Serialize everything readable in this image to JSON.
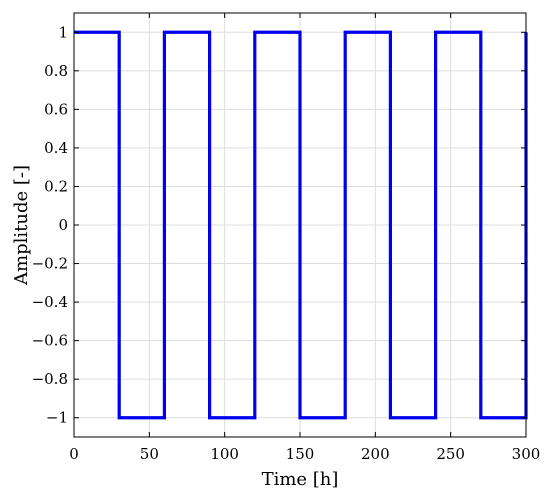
{
  "chart_data": {
    "type": "line",
    "title": "",
    "xlabel": "Time [h]",
    "ylabel": "Amplitude [-]",
    "xlim": [
      0,
      300
    ],
    "ylim": [
      -1.1,
      1.1
    ],
    "x_ticks": [
      0,
      50,
      100,
      150,
      200,
      250,
      300
    ],
    "x_tick_labels": [
      "0",
      "50",
      "100",
      "150",
      "200",
      "250",
      "300"
    ],
    "y_ticks": [
      1,
      0.8,
      0.6,
      0.4,
      0.2,
      0,
      -0.2,
      -0.4,
      -0.6,
      -0.8,
      -1
    ],
    "y_tick_labels": [
      "1",
      "0.8",
      "0.6",
      "0.4",
      "0.2",
      "0",
      "−0.2",
      "−0.4",
      "−0.6",
      "−0.8",
      "−1"
    ],
    "grid": true,
    "series": [
      {
        "color": "#0000ee",
        "step": true,
        "x": [
          0,
          30,
          30,
          60,
          60,
          90,
          90,
          120,
          120,
          150,
          150,
          180,
          180,
          210,
          210,
          240,
          240,
          270,
          270,
          300,
          300
        ],
        "y": [
          1,
          1,
          -1,
          -1,
          1,
          1,
          -1,
          -1,
          1,
          1,
          -1,
          -1,
          1,
          1,
          -1,
          -1,
          1,
          1,
          -1,
          -1,
          1
        ]
      }
    ]
  }
}
